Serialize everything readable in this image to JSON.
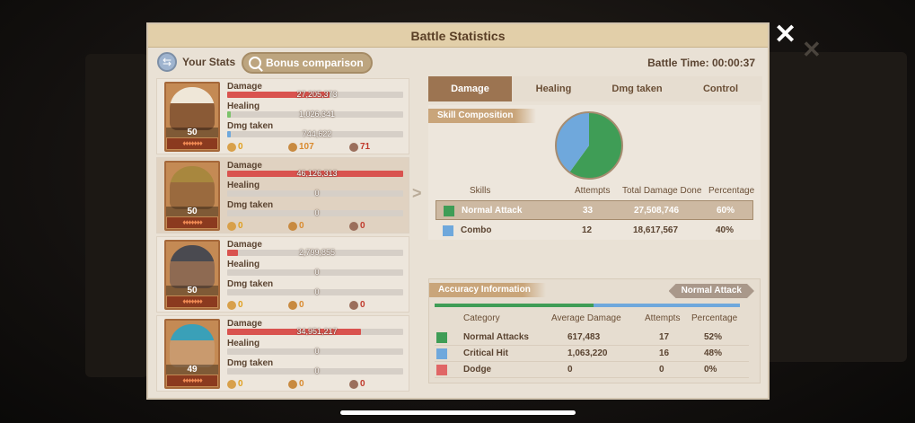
{
  "window": {
    "title": "Battle Statistics"
  },
  "topbar": {
    "your_stats": "Your Stats",
    "bonus_comparison": "Bonus comparison",
    "battle_time_label": "Battle Time:",
    "battle_time_value": "00:00:37"
  },
  "labels": {
    "damage": "Damage",
    "healing": "Healing",
    "dmg_taken": "Dmg taken"
  },
  "heroes": [
    {
      "level": "50",
      "damage": "27,205,373",
      "damage_fraction": 0.58,
      "healing": "1,026,341",
      "healing_fraction": 0.02,
      "dmg_taken": "744,622",
      "dmg_taken_fraction": 0.02,
      "count_a": "0",
      "count_b": "107",
      "count_c": "71",
      "face_color": "#8a5a36",
      "hat_color": "#efe7d8"
    },
    {
      "level": "50",
      "damage": "46,126,313",
      "damage_fraction": 1.0,
      "healing": "0",
      "healing_fraction": 0,
      "dmg_taken": "0",
      "dmg_taken_fraction": 0,
      "count_a": "0",
      "count_b": "0",
      "count_c": "0",
      "face_color": "#9a6a3e",
      "hat_color": "#a8873e"
    },
    {
      "level": "50",
      "damage": "2,799,855",
      "damage_fraction": 0.06,
      "healing": "0",
      "healing_fraction": 0,
      "dmg_taken": "0",
      "dmg_taken_fraction": 0,
      "count_a": "0",
      "count_b": "0",
      "count_c": "0",
      "face_color": "#8e6a52",
      "hat_color": "#4a4a50"
    },
    {
      "level": "49",
      "damage": "34,951,217",
      "damage_fraction": 0.76,
      "healing": "0",
      "healing_fraction": 0,
      "dmg_taken": "0",
      "dmg_taken_fraction": 0,
      "count_a": "0",
      "count_b": "0",
      "count_c": "0",
      "face_color": "#c99a6e",
      "hat_color": "#3aa0b8"
    }
  ],
  "tabs": [
    {
      "label": "Damage",
      "active": true
    },
    {
      "label": "Healing",
      "active": false
    },
    {
      "label": "Dmg taken",
      "active": false
    },
    {
      "label": "Control",
      "active": false
    }
  ],
  "skill": {
    "title": "Skill Composition",
    "headers": {
      "skills": "Skills",
      "attempts": "Attempts",
      "total": "Total Damage Done",
      "percentage": "Percentage"
    },
    "rows": [
      {
        "name": "Normal Attack",
        "attempts": "33",
        "total": "27,508,746",
        "percentage": "60%",
        "color": "#3f9d56"
      },
      {
        "name": "Combo",
        "attempts": "12",
        "total": "18,617,567",
        "percentage": "40%",
        "color": "#6fa8dc"
      }
    ]
  },
  "accuracy": {
    "title": "Accuracy Information",
    "filter": "Normal Attack",
    "headers": {
      "category": "Category",
      "avg": "Average Damage",
      "attempts": "Attempts",
      "percentage": "Percentage"
    },
    "rows": [
      {
        "name": "Normal Attacks",
        "avg": "617,483",
        "attempts": "17",
        "percentage": "52%",
        "color": "#3f9d56",
        "fraction": 0.52
      },
      {
        "name": "Critical Hit",
        "avg": "1,063,220",
        "attempts": "16",
        "percentage": "48%",
        "color": "#6fa8dc",
        "fraction": 0.48
      },
      {
        "name": "Dodge",
        "avg": "0",
        "attempts": "0",
        "percentage": "0%",
        "color": "#e06666",
        "fraction": 0
      }
    ]
  },
  "colors": {
    "damage_bar": "#d9534f",
    "healing_bar": "#7cc36a",
    "dmg_taken_bar": "#6fa8dc"
  }
}
